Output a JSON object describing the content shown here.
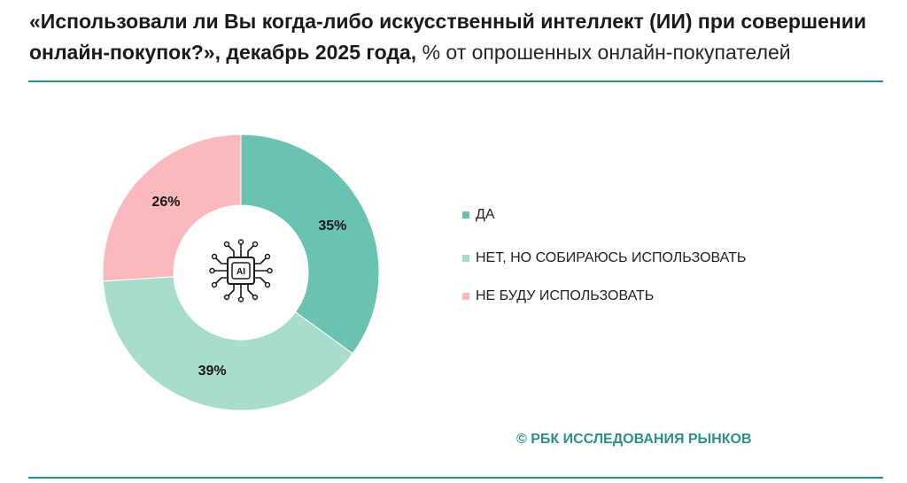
{
  "chart_data": {
    "type": "pie",
    "donut": true,
    "title": "«Использовали ли Вы когда-либо искусственный интеллект (ИИ) при совершении онлайн-покупок?», декабрь 2025 года,",
    "subtitle": "% от опрошенных онлайн-покупателей",
    "categories": [
      "ДА",
      "НЕТ, НО СОБИРАЮСЬ ИСПОЛЬЗОВАТЬ",
      "НЕ БУДУ ИСПОЛЬЗОВАТЬ"
    ],
    "values": [
      35,
      39,
      26
    ],
    "labels": [
      "35%",
      "39%",
      "26%"
    ],
    "colors": [
      "#69c3b0",
      "#a8ddce",
      "#f9b9bd"
    ],
    "legend_position": "right"
  },
  "center_icon": {
    "name": "ai-chip-icon",
    "text": "AI"
  },
  "footer": {
    "source": "© РБК ИССЛЕДОВАНИЯ РЫНКОВ"
  },
  "theme": {
    "accent": "#2b8a84",
    "source_color": "#2f8f88"
  }
}
